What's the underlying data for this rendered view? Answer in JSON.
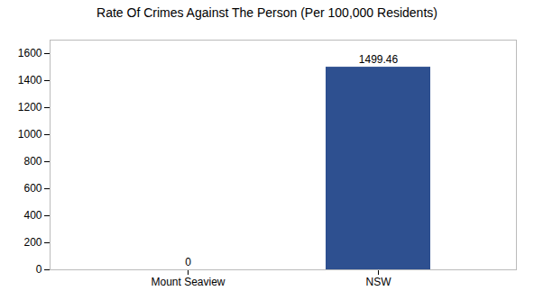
{
  "chart_data": {
    "type": "bar",
    "title": "Rate Of Crimes Against The Person (Per 100,000 Residents)",
    "categories": [
      "Mount Seaview",
      "NSW"
    ],
    "values": [
      0,
      1499.46
    ],
    "color": "#2e5090",
    "ylim": [
      0,
      1700
    ],
    "yticks": [
      0,
      200,
      400,
      600,
      800,
      1000,
      1200,
      1400,
      1600
    ],
    "grid": false,
    "data_labels": true
  }
}
